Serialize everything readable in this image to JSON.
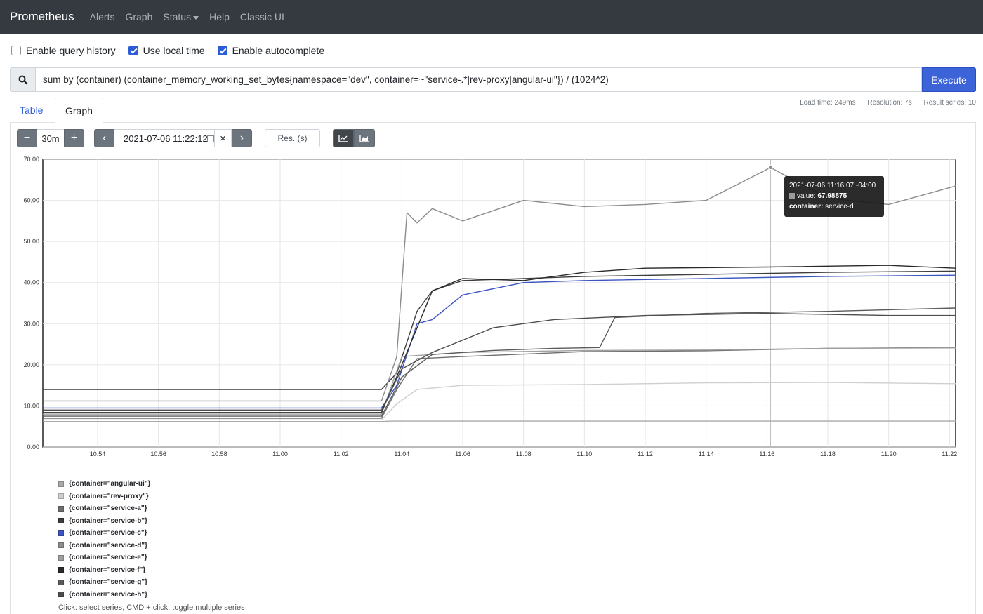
{
  "navbar": {
    "brand": "Prometheus",
    "links": [
      "Alerts",
      "Graph",
      "Status",
      "Help",
      "Classic UI"
    ]
  },
  "options": [
    {
      "label": "Enable query history",
      "checked": false
    },
    {
      "label": "Use local time",
      "checked": true
    },
    {
      "label": "Enable autocomplete",
      "checked": true
    }
  ],
  "query": {
    "expression": "sum by (container) (container_memory_working_set_bytes{namespace=\"dev\", container=~\"service-.*|rev-proxy|angular-ui\"}) / (1024^2)",
    "execute_label": "Execute",
    "search_icon": "search-icon"
  },
  "tabs": {
    "table": "Table",
    "graph": "Graph"
  },
  "stats": {
    "load_time": "Load time: 249ms",
    "resolution": "Resolution: 7s",
    "result_series": "Result series: 10"
  },
  "controls": {
    "minus": "−",
    "range": "30m",
    "plus": "+",
    "prev": "‹",
    "end_time": "2021-07-06 11:22:12",
    "clear": "×",
    "next": "›",
    "resolution_placeholder": "Res. (s)"
  },
  "tooltip": {
    "time": "2021-07-06 11:16:07 -04:00",
    "value_label": "value:",
    "value": "67.98875",
    "container_label": "container:",
    "container": "service-d"
  },
  "chart_data": {
    "type": "line",
    "x_ticks": [
      "10:54",
      "10:56",
      "10:58",
      "11:00",
      "11:02",
      "11:04",
      "11:06",
      "11:08",
      "11:10",
      "11:12",
      "11:14",
      "11:16",
      "11:18",
      "11:20",
      "11:22"
    ],
    "y_ticks": [
      "0.00",
      "10.00",
      "20.00",
      "30.00",
      "40.00",
      "50.00",
      "60.00",
      "70.00"
    ],
    "xlim_minutes": [
      "10:52:12",
      "11:22:12"
    ],
    "ylim": [
      0,
      70
    ],
    "series": [
      {
        "name": "{container=\"angular-ui\"}",
        "color": "#a9a9a9",
        "points": [
          [
            "10:52:12",
            6.2
          ],
          [
            "11:03:20",
            6.2
          ],
          [
            "11:03:40",
            6.3
          ],
          [
            "11:22:12",
            6.3
          ]
        ]
      },
      {
        "name": "{container=\"rev-proxy\"}",
        "color": "#cfcfcf",
        "points": [
          [
            "10:52:12",
            6.6
          ],
          [
            "11:03:20",
            6.6
          ],
          [
            "11:03:50",
            10.5
          ],
          [
            "11:04:30",
            14.0
          ],
          [
            "11:06",
            15.0
          ],
          [
            "11:10",
            15.2
          ],
          [
            "11:14",
            15.6
          ],
          [
            "11:18",
            15.7
          ],
          [
            "11:22:12",
            15.4
          ]
        ]
      },
      {
        "name": "{container=\"service-a\"}",
        "color": "#6e6e6e",
        "points": [
          [
            "10:52:12",
            7.0
          ],
          [
            "11:03:20",
            7.0
          ],
          [
            "11:03:50",
            14.0
          ],
          [
            "11:04:30",
            21.5
          ],
          [
            "11:06",
            22.0
          ],
          [
            "11:10",
            23.2
          ],
          [
            "11:14",
            23.4
          ],
          [
            "11:18",
            24.0
          ],
          [
            "11:22:12",
            24.2
          ]
        ]
      },
      {
        "name": "{container=\"service-b\"}",
        "color": "#3d3d3d",
        "points": [
          [
            "10:52:12",
            14.0
          ],
          [
            "11:03:20",
            14.0
          ],
          [
            "11:03:50",
            18.0
          ],
          [
            "11:04:30",
            33.0
          ],
          [
            "11:05",
            38.0
          ],
          [
            "11:06",
            40.5
          ],
          [
            "11:08",
            41.0
          ],
          [
            "11:10",
            41.5
          ],
          [
            "11:14",
            42.0
          ],
          [
            "11:18",
            42.5
          ],
          [
            "11:22:12",
            42.8
          ]
        ]
      },
      {
        "name": "{container=\"service-c\"}",
        "color": "#3b55c0",
        "points": [
          [
            "10:52:12",
            9.5
          ],
          [
            "11:03:20",
            9.5
          ],
          [
            "11:03:50",
            15.0
          ],
          [
            "11:04:30",
            30.0
          ],
          [
            "11:05",
            31.0
          ],
          [
            "11:06",
            37.0
          ],
          [
            "11:08",
            40.0
          ],
          [
            "11:10",
            40.5
          ],
          [
            "11:14",
            41.0
          ],
          [
            "11:18",
            41.5
          ],
          [
            "11:22:12",
            41.8
          ]
        ]
      },
      {
        "name": "{container=\"service-d\"}",
        "color": "#8c8c8c",
        "points": [
          [
            "10:52:12",
            11.2
          ],
          [
            "11:03:20",
            11.2
          ],
          [
            "11:03:50",
            22.0
          ],
          [
            "11:04:10",
            57.0
          ],
          [
            "11:04:30",
            54.5
          ],
          [
            "11:05",
            58.0
          ],
          [
            "11:06",
            55.0
          ],
          [
            "11:08",
            60.0
          ],
          [
            "11:10",
            58.5
          ],
          [
            "11:12",
            59.0
          ],
          [
            "11:14",
            60.0
          ],
          [
            "11:16:07",
            67.98875
          ],
          [
            "11:18",
            60.5
          ],
          [
            "11:20",
            59.0
          ],
          [
            "11:22:12",
            63.5
          ]
        ]
      },
      {
        "name": "{container=\"service-e\"}",
        "color": "#a0a0a0",
        "points": [
          [
            "10:52:12",
            8.0
          ],
          [
            "11:03:20",
            8.0
          ],
          [
            "11:04",
            22.0
          ],
          [
            "11:06",
            23.0
          ],
          [
            "11:10",
            23.5
          ],
          [
            "11:14",
            23.6
          ],
          [
            "11:18",
            24.0
          ],
          [
            "11:22:12",
            24.1
          ]
        ]
      },
      {
        "name": "{container=\"service-f\"}",
        "color": "#2a2a2a",
        "points": [
          [
            "10:52:12",
            8.4
          ],
          [
            "11:03:20",
            8.4
          ],
          [
            "11:04",
            20.0
          ],
          [
            "11:05",
            38.0
          ],
          [
            "11:06",
            41.0
          ],
          [
            "11:08",
            40.5
          ],
          [
            "11:10",
            42.5
          ],
          [
            "11:12",
            43.5
          ],
          [
            "11:16",
            43.8
          ],
          [
            "11:20",
            44.2
          ],
          [
            "11:22:12",
            43.5
          ]
        ]
      },
      {
        "name": "{container=\"service-g\"}",
        "color": "#5a5a5a",
        "points": [
          [
            "10:52:12",
            7.5
          ],
          [
            "11:03:20",
            7.5
          ],
          [
            "11:04",
            17.0
          ],
          [
            "11:05",
            22.5
          ],
          [
            "11:07",
            23.5
          ],
          [
            "11:09",
            24.0
          ],
          [
            "11:10:30",
            24.2
          ],
          [
            "11:11",
            31.5
          ],
          [
            "11:14",
            32.5
          ],
          [
            "11:18",
            33.0
          ],
          [
            "11:22:12",
            33.8
          ]
        ]
      },
      {
        "name": "{container=\"service-h\"}",
        "color": "#4d4d4d",
        "points": [
          [
            "10:52:12",
            9.0
          ],
          [
            "11:03:20",
            9.0
          ],
          [
            "11:04",
            19.0
          ],
          [
            "11:05",
            23.0
          ],
          [
            "11:07",
            29.0
          ],
          [
            "11:09",
            31.0
          ],
          [
            "11:12",
            32.0
          ],
          [
            "11:16",
            32.5
          ],
          [
            "11:20",
            32.0
          ],
          [
            "11:22:12",
            32.0
          ]
        ]
      }
    ]
  },
  "legend_hint": "Click: select series, CMD + click: toggle multiple series"
}
